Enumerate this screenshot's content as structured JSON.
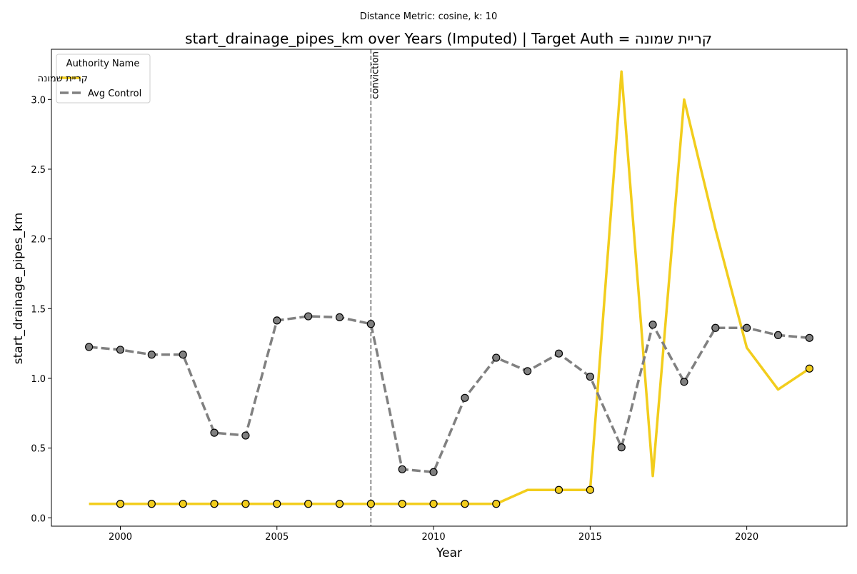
{
  "chart_data": {
    "type": "line",
    "suptitle": "Distance Metric: cosine, k: 10",
    "title": "start_drainage_pipes_km over Years (Imputed) | Target Auth = קריית שמונה",
    "xlabel": "Year",
    "ylabel": "start_drainage_pipes_km",
    "xlim": [
      1997.8,
      2023.2
    ],
    "ylim": [
      -0.06,
      3.36
    ],
    "xticks": [
      2000,
      2005,
      2010,
      2015,
      2020
    ],
    "yticks": [
      0.0,
      0.5,
      1.0,
      1.5,
      2.0,
      2.5,
      3.0
    ],
    "xtick_labels": [
      "2000",
      "2005",
      "2010",
      "2015",
      "2020"
    ],
    "ytick_labels": [
      "0.0",
      "0.5",
      "1.0",
      "1.5",
      "2.0",
      "2.5",
      "3.0"
    ],
    "legend": {
      "title": "Authority Name",
      "position": "top-left"
    },
    "annotation": {
      "x": 2008,
      "label": "conviction"
    },
    "x": [
      1999,
      2000,
      2001,
      2002,
      2003,
      2004,
      2005,
      2006,
      2007,
      2008,
      2009,
      2010,
      2011,
      2012,
      2013,
      2014,
      2015,
      2016,
      2017,
      2018,
      2019,
      2020,
      2021,
      2022
    ],
    "series": [
      {
        "name": "קריית שמונה",
        "color": "#f2cd1c",
        "style": "solid",
        "values": [
          0.1,
          0.1,
          0.1,
          0.1,
          0.1,
          0.1,
          0.1,
          0.1,
          0.1,
          0.1,
          0.1,
          0.1,
          0.1,
          0.1,
          0.2,
          0.2,
          0.2,
          3.2,
          0.3,
          3.0,
          2.07,
          1.22,
          0.92,
          1.07
        ],
        "markers": [
          false,
          true,
          true,
          true,
          true,
          true,
          true,
          true,
          true,
          true,
          true,
          true,
          true,
          true,
          false,
          true,
          true,
          false,
          false,
          false,
          false,
          false,
          false,
          true
        ]
      },
      {
        "name": "Avg Control",
        "color": "#808080",
        "style": "dashed",
        "values": [
          1.225,
          1.205,
          1.17,
          1.17,
          0.61,
          0.59,
          1.415,
          1.445,
          1.438,
          1.39,
          0.348,
          0.328,
          0.86,
          1.148,
          1.052,
          1.178,
          1.012,
          0.505,
          1.385,
          0.975,
          1.362,
          1.362,
          1.31,
          1.29
        ],
        "markers": [
          true,
          true,
          true,
          true,
          true,
          true,
          true,
          true,
          true,
          true,
          true,
          true,
          true,
          true,
          true,
          true,
          true,
          true,
          true,
          true,
          true,
          true,
          true,
          true
        ]
      }
    ]
  }
}
